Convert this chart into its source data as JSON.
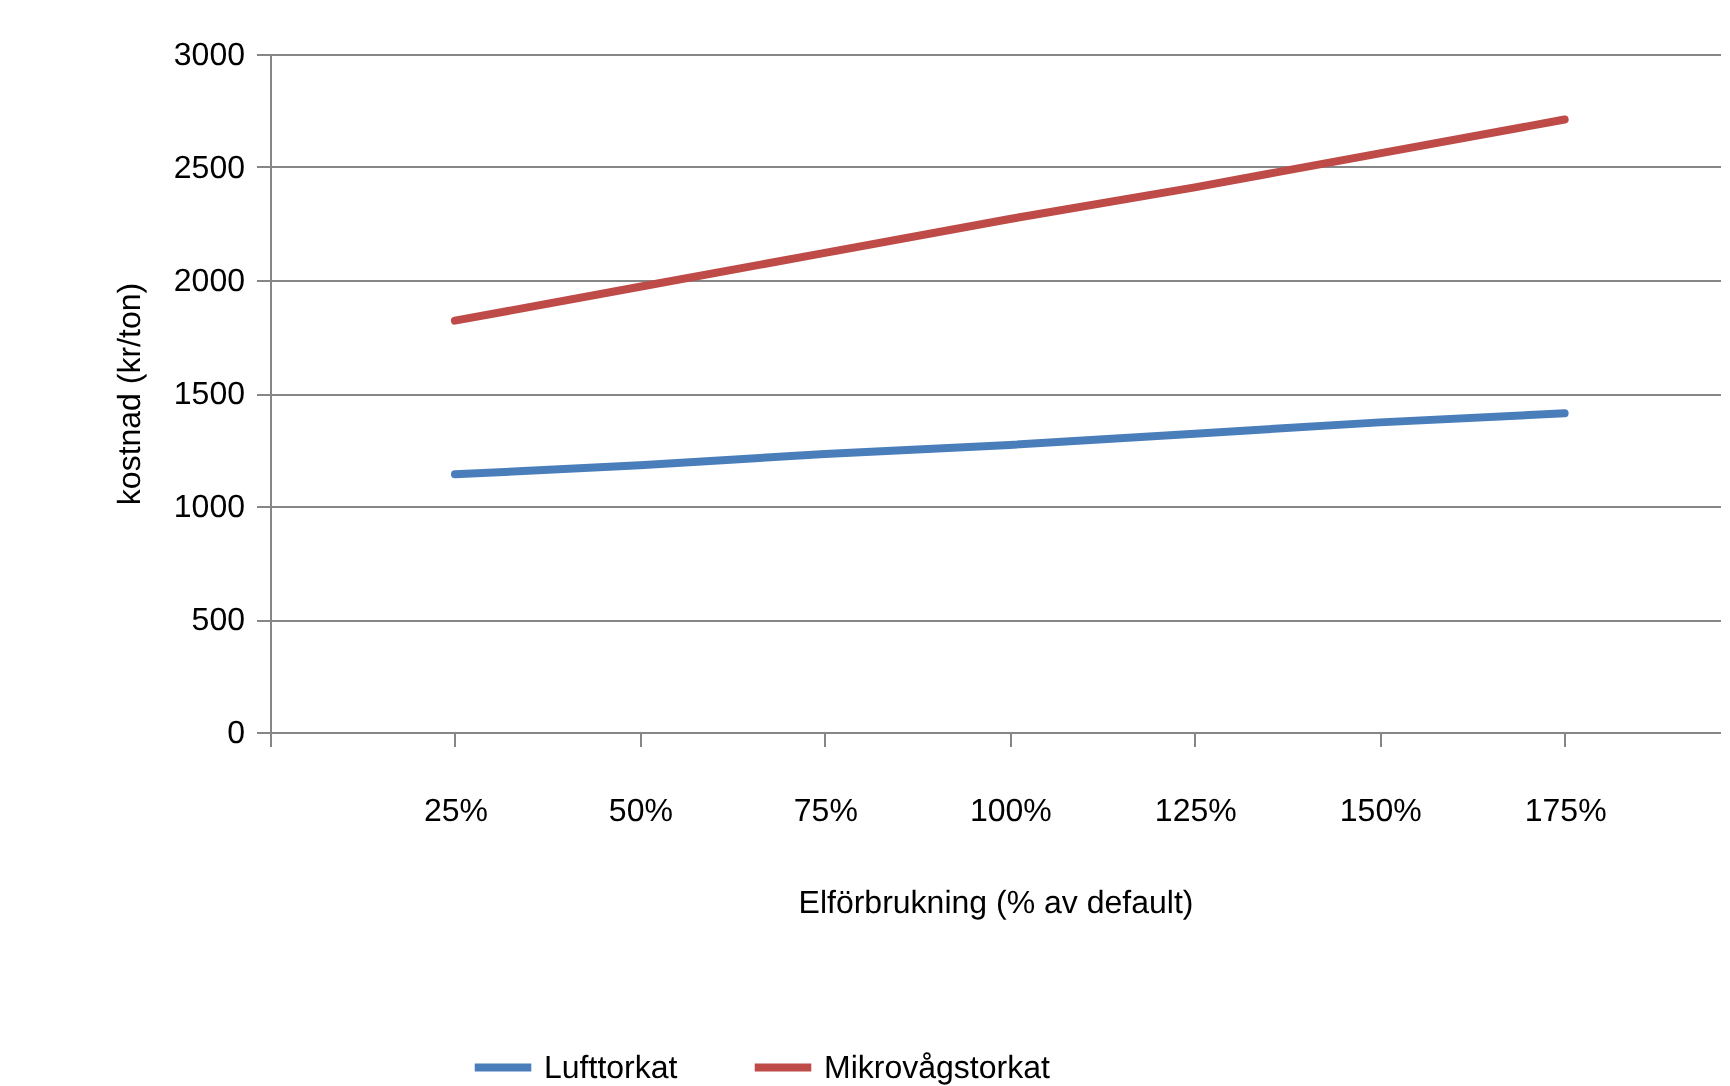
{
  "chart_data": {
    "type": "line",
    "xlabel": "Elförbrukning (% av default)",
    "ylabel": "kostnad (kr/ton)",
    "x": [
      25,
      50,
      75,
      100,
      125,
      150,
      175
    ],
    "series": [
      {
        "name": "Lufttorkat",
        "color": "#4a7ebb",
        "values": [
          1140,
          1180,
          1230,
          1270,
          1320,
          1370,
          1410
        ]
      },
      {
        "name": "Mikrovågstorkat",
        "color": "#be4b48",
        "values": [
          1820,
          1970,
          2120,
          2270,
          2410,
          2560,
          2710
        ]
      }
    ],
    "xlim": [
      0,
      196
    ],
    "xticks": [
      {
        "value": 0,
        "label": null
      },
      {
        "value": 25,
        "label": "25%"
      },
      {
        "value": 50,
        "label": "50%"
      },
      {
        "value": 75,
        "label": "75%"
      },
      {
        "value": 100,
        "label": "100%"
      },
      {
        "value": 125,
        "label": "125%"
      },
      {
        "value": 150,
        "label": "150%"
      },
      {
        "value": 175,
        "label": "175%"
      }
    ],
    "ylim": [
      0,
      3000
    ],
    "yticks": [
      0,
      500,
      1000,
      1500,
      2000,
      2500,
      3000
    ],
    "grid": "y",
    "legend": "bottom",
    "marker": "none",
    "line_style": "solid"
  }
}
